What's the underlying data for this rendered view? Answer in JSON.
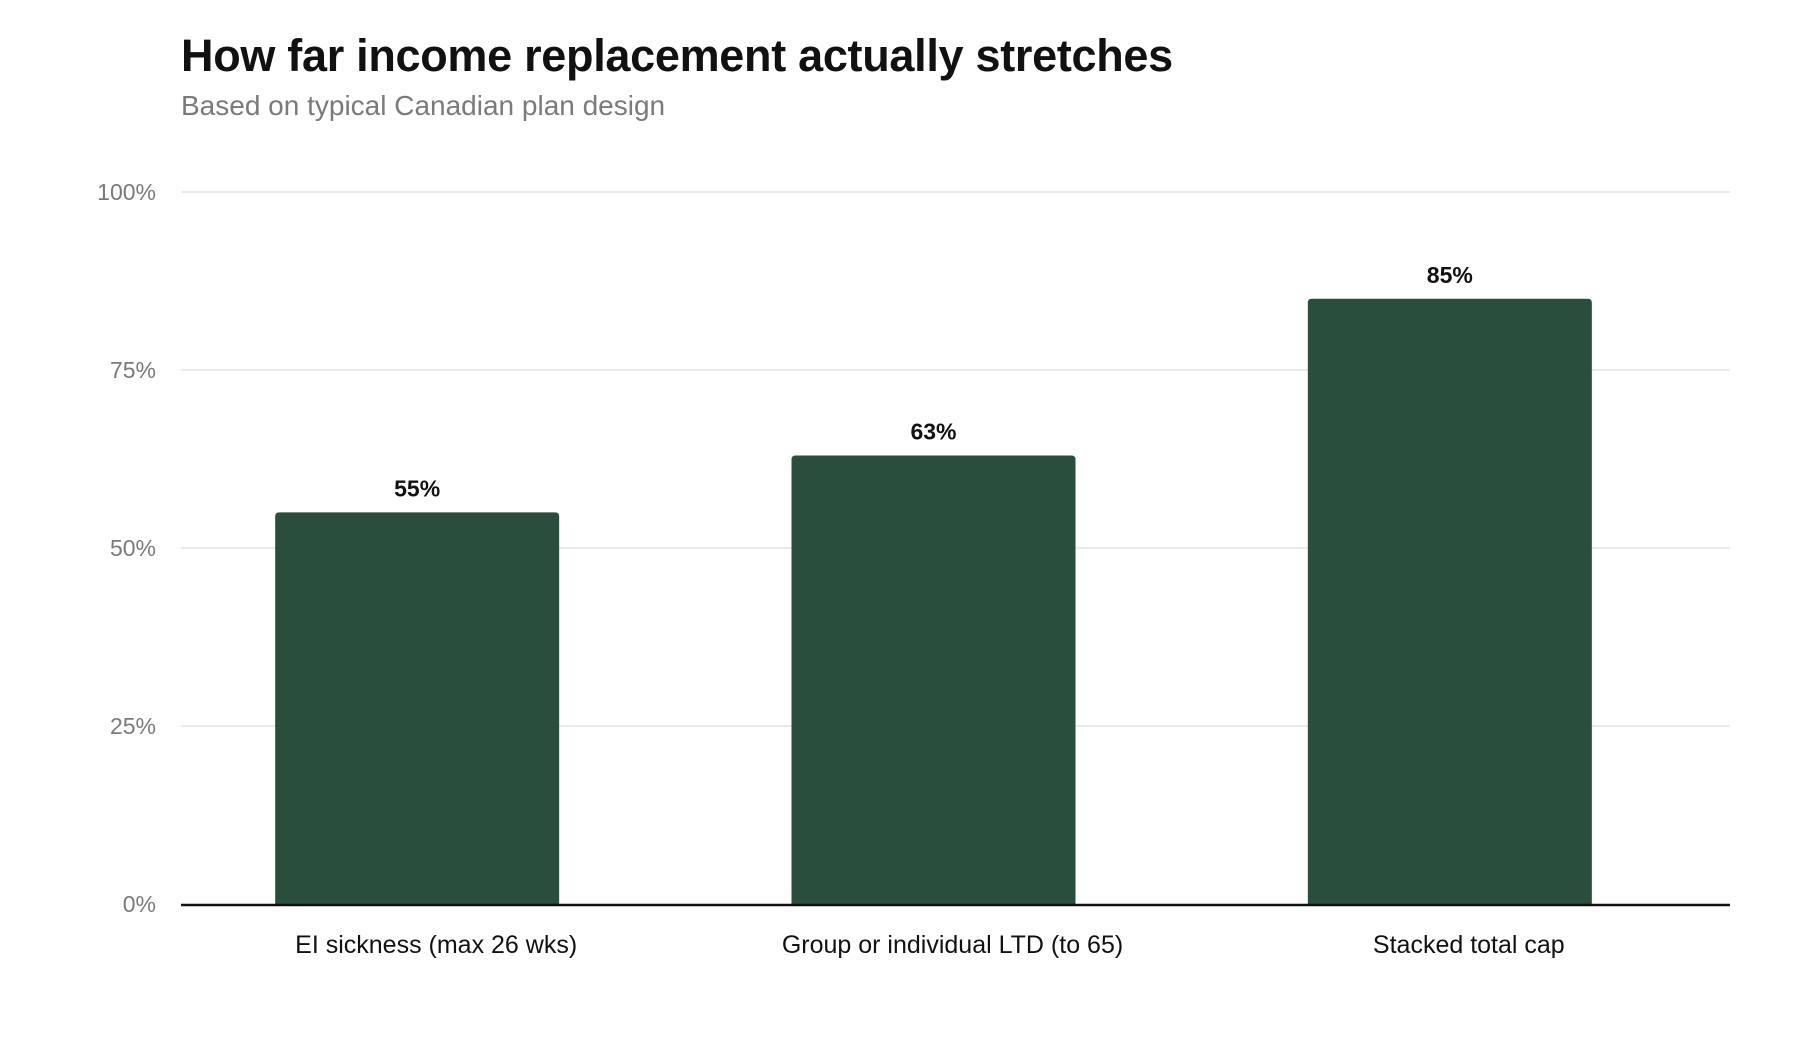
{
  "chart": {
    "title": "How far income replacement actually stretches",
    "subtitle": "Based on typical Canadian plan design"
  },
  "colors": {
    "bar": "#2a4e3c",
    "grid": "#e3e3e3",
    "axis": "#111111"
  },
  "chart_data": {
    "type": "bar",
    "title": "How far income replacement actually stretches",
    "subtitle": "Based on typical Canadian plan design",
    "categories": [
      "EI sickness (max 26 wks)",
      "Group or individual LTD (to 65)",
      "Stacked total cap"
    ],
    "values": [
      55,
      63,
      85
    ],
    "data_labels": [
      "55%",
      "63%",
      "85%"
    ],
    "xlabel": "",
    "ylabel": "",
    "ylim": [
      0,
      100
    ],
    "yticks": [
      0,
      25,
      50,
      75,
      100
    ],
    "ytick_labels": [
      "0%",
      "25%",
      "50%",
      "75%",
      "100%"
    ],
    "grid": true,
    "legend": "none"
  }
}
